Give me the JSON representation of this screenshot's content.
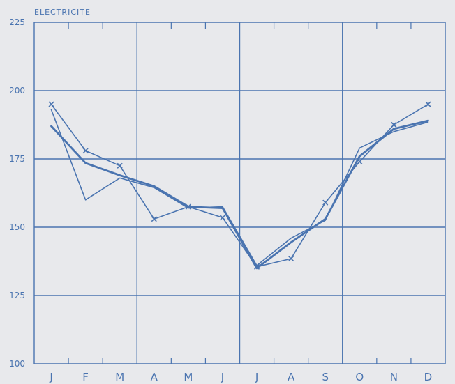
{
  "chart_data": {
    "type": "line",
    "title": "ELECTRICITE",
    "xlabel": "",
    "ylabel": "",
    "categories": [
      "J",
      "F",
      "M",
      "A",
      "M",
      "J",
      "J",
      "A",
      "S",
      "O",
      "N",
      "D"
    ],
    "ylim": [
      100,
      225
    ],
    "yticks": [
      100,
      125,
      150,
      175,
      200,
      225
    ],
    "grid": true,
    "legend": "none",
    "colors": {
      "line": "#4a74b0",
      "background": "#e8e9ec"
    },
    "series": [
      {
        "marker": "x",
        "stroke": 1.6,
        "values": [
          195,
          178,
          172.5,
          153,
          157.5,
          153.5,
          135.5,
          138.5,
          159,
          174,
          187.5,
          195
        ]
      },
      {
        "marker": "none",
        "stroke": 1.6,
        "values": [
          193,
          160,
          168,
          164.5,
          157,
          157.5,
          136,
          146,
          152.5,
          179,
          185,
          188.5
        ]
      },
      {
        "marker": "none",
        "stroke": 2.8,
        "values": [
          187,
          173.5,
          169,
          165,
          157.5,
          157,
          135,
          144.5,
          153,
          176,
          186,
          189
        ]
      }
    ]
  }
}
